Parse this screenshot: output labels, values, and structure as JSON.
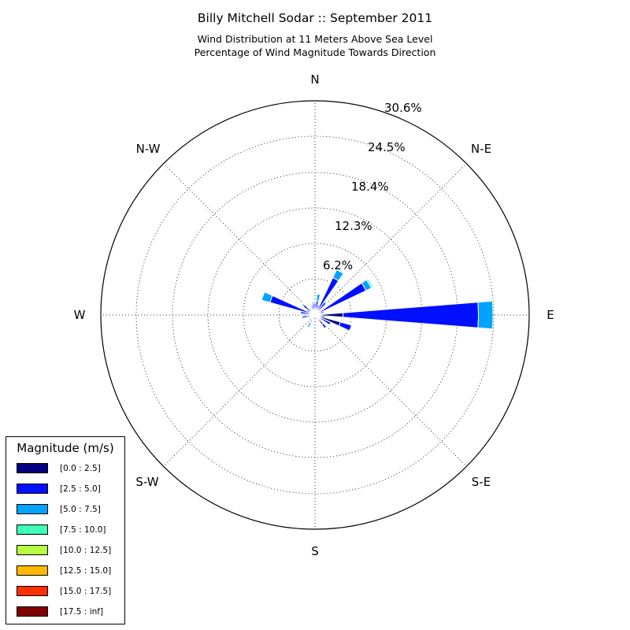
{
  "chart_data": {
    "type": "windrose",
    "title": "Billy Mitchell Sodar :: September 2011",
    "subtitle_lines": [
      "Wind Distribution at 11 Meters Above Sea Level",
      "Percentage of Wind Magnitude Towards Direction"
    ],
    "directions": [
      "N",
      "N-E",
      "E",
      "S-E",
      "S",
      "S-W",
      "W",
      "N-W"
    ],
    "radial_max": 36.7,
    "radial_ticks": [
      6.2,
      12.3,
      18.4,
      24.5,
      30.6
    ],
    "radial_tick_labels": [
      "6.2%",
      "12.3%",
      "18.4%",
      "24.5%",
      "30.6%"
    ],
    "legend": {
      "title": "Magnitude (m/s)",
      "placement": "lower-left",
      "items": [
        {
          "label": "[0.0 : 2.5]",
          "color": "#000080"
        },
        {
          "label": "[2.5 : 5.0]",
          "color": "#0010ff"
        },
        {
          "label": "[5.0 : 7.5]",
          "color": "#00a4ff"
        },
        {
          "label": "[7.5 : 10.0]",
          "color": "#40ffb6"
        },
        {
          "label": "[10.0 : 12.5]",
          "color": "#b6ff40"
        },
        {
          "label": "[12.5 : 15.0]",
          "color": "#ffb800"
        },
        {
          "label": "[15.0 : 17.5]",
          "color": "#ff3000"
        },
        {
          "label": "[17.5 : inf]",
          "color": "#800000"
        }
      ]
    },
    "bin_width_deg": 10,
    "bins": [
      {
        "dir": 0,
        "values": [
          0.5,
          1.5,
          0.3
        ]
      },
      {
        "dir": 10,
        "values": [
          0.4,
          2.0,
          1.2
        ]
      },
      {
        "dir": 20,
        "values": [
          0.5,
          1.3,
          0.2
        ]
      },
      {
        "dir": 30,
        "values": [
          0.6,
          6.5,
          1.5
        ]
      },
      {
        "dir": 40,
        "values": [
          0.5,
          2.2,
          0.2
        ]
      },
      {
        "dir": 60,
        "values": [
          0.5,
          9.2,
          1.0,
          0.3
        ]
      },
      {
        "dir": 70,
        "values": [
          0.6,
          1.0
        ]
      },
      {
        "dir": 90,
        "values": [
          4.8,
          23.2,
          2.5
        ]
      },
      {
        "dir": 100,
        "values": [
          0.6,
          1.2
        ]
      },
      {
        "dir": 110,
        "values": [
          4.5,
          2.0
        ]
      },
      {
        "dir": 120,
        "values": [
          1.0,
          2.0
        ]
      },
      {
        "dir": 140,
        "values": [
          2.0,
          0.8
        ]
      },
      {
        "dir": 150,
        "values": [
          0.5,
          0.3
        ]
      },
      {
        "dir": 160,
        "values": [
          0.5
        ]
      },
      {
        "dir": 200,
        "values": [
          0.4
        ]
      },
      {
        "dir": 210,
        "values": [
          0.8,
          0.6,
          1.0
        ]
      },
      {
        "dir": 220,
        "values": [
          0.5,
          0.5
        ]
      },
      {
        "dir": 240,
        "values": [
          0.4,
          0.8
        ]
      },
      {
        "dir": 260,
        "values": [
          0.5,
          1.7,
          0.2
        ]
      },
      {
        "dir": 280,
        "values": [
          0.5,
          2.0
        ]
      },
      {
        "dir": 290,
        "values": [
          1.0,
          7.0,
          1.5
        ]
      },
      {
        "dir": 300,
        "values": [
          0.8,
          0.8
        ]
      },
      {
        "dir": 310,
        "values": [
          1.0,
          1.5,
          0.3
        ]
      },
      {
        "dir": 320,
        "values": [
          0.8,
          0.6
        ]
      },
      {
        "dir": 330,
        "values": [
          0.6,
          0.4
        ]
      },
      {
        "dir": 340,
        "values": [
          0.6,
          1.0
        ]
      },
      {
        "dir": 350,
        "values": [
          0.6,
          1.3,
          0.3
        ]
      }
    ]
  }
}
